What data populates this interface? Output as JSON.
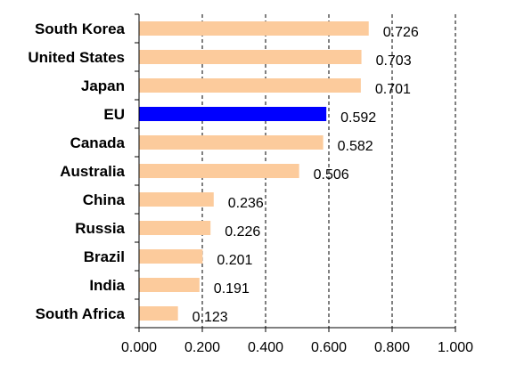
{
  "chart_data": {
    "type": "bar",
    "orientation": "horizontal",
    "categories": [
      "South Korea",
      "United States",
      "Japan",
      "EU",
      "Canada",
      "Australia",
      "China",
      "Russia",
      "Brazil",
      "India",
      "South Africa"
    ],
    "values": [
      0.726,
      0.703,
      0.701,
      0.592,
      0.582,
      0.506,
      0.236,
      0.226,
      0.201,
      0.191,
      0.123
    ],
    "value_labels": [
      "0.726",
      "0.703",
      "0.701",
      "0.592",
      "0.582",
      "0.506",
      "0.236",
      "0.226",
      "0.201",
      "0.191",
      "0.123"
    ],
    "highlight_category": "EU",
    "xlim": [
      0,
      1
    ],
    "xticks": [
      0,
      0.2,
      0.4,
      0.6,
      0.8,
      1.0
    ],
    "xtick_labels": [
      "0.000",
      "0.200",
      "0.400",
      "0.600",
      "0.800",
      "1.000"
    ],
    "grid": "vertical dashed",
    "legend": "none",
    "title": "",
    "xlabel": "",
    "ylabel": ""
  },
  "colors": {
    "bar": "#FCCB9C",
    "highlight_bar": "#0000FF",
    "axis": "#000000",
    "grid": "#000000"
  }
}
